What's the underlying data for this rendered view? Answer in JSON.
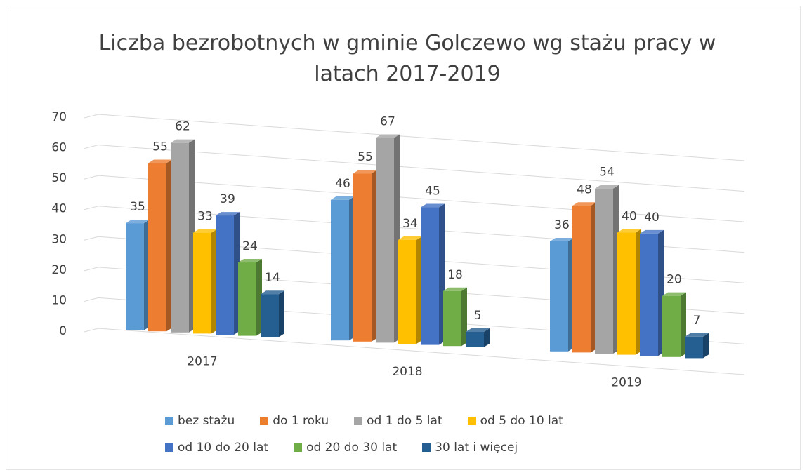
{
  "chart_data": {
    "type": "bar",
    "title": "Liczba bezrobotnych w gminie Golczewo wg stażu pracy w latach 2017-2019",
    "categories": [
      "2017",
      "2018",
      "2019"
    ],
    "series": [
      {
        "name": "bez stażu",
        "color": "#5b9bd5",
        "values": [
          35,
          46,
          36
        ]
      },
      {
        "name": "do 1 roku",
        "color": "#ed7d31",
        "values": [
          55,
          55,
          48
        ]
      },
      {
        "name": "od 1 do 5 lat",
        "color": "#a5a5a5",
        "values": [
          62,
          67,
          54
        ]
      },
      {
        "name": "od 5 do 10 lat",
        "color": "#ffc000",
        "values": [
          33,
          34,
          40
        ]
      },
      {
        "name": "od 10 do 20 lat",
        "color": "#4472c4",
        "values": [
          39,
          45,
          40
        ]
      },
      {
        "name": "od 20 do 30 lat",
        "color": "#70ad47",
        "values": [
          24,
          18,
          20
        ]
      },
      {
        "name": "30 lat i więcej",
        "color": "#255e91",
        "values": [
          14,
          5,
          7
        ]
      }
    ],
    "ylim": [
      0,
      70
    ],
    "yticks": [
      0,
      10,
      20,
      30,
      40,
      50,
      60,
      70
    ],
    "grid": true,
    "legend": "bottom"
  }
}
